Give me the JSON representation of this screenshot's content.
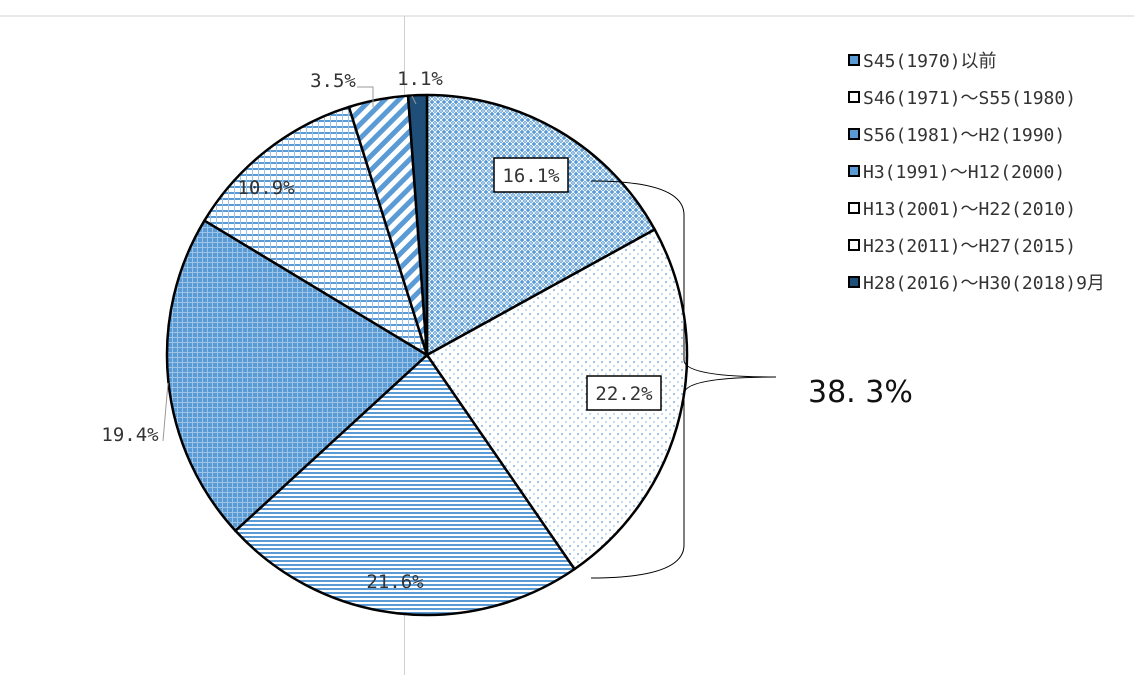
{
  "chart_data": {
    "type": "pie",
    "title": "",
    "slices": [
      {
        "label": "S45(1970)以前",
        "value": 16.1,
        "value_label": "16.1%",
        "boxed": true
      },
      {
        "label": "S46(1971)～S55(1980)",
        "value": 22.2,
        "value_label": "22.2%",
        "boxed": true
      },
      {
        "label": "S56(1981)～H2(1990)",
        "value": 21.6,
        "value_label": "21.6%",
        "boxed": false
      },
      {
        "label": "H3(1991)～H12(2000)",
        "value": 19.4,
        "value_label": "19.4%",
        "boxed": false
      },
      {
        "label": "H13(2001)～H22(2010)",
        "value": 10.9,
        "value_label": "10.9%",
        "boxed": false
      },
      {
        "label": "H23(2011)～H27(2015)",
        "value": 3.5,
        "value_label": "3.5%",
        "boxed": false
      },
      {
        "label": "H28(2016)～H30(2018)9月",
        "value": 1.1,
        "value_label": "1.1%",
        "boxed": false
      }
    ],
    "legend_position": "top-right",
    "bracket_total_label": "38. 3%",
    "colors": {
      "main_blue": "#5b9bd5",
      "light_blue": "#9dc3e6",
      "dark_blue": "#1f4e79",
      "outline": "#000000"
    }
  }
}
